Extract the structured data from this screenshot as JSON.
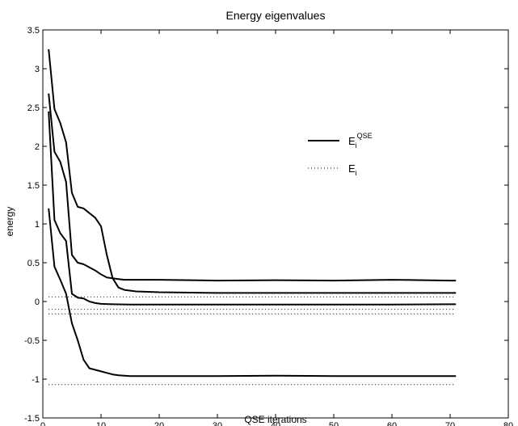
{
  "chart_data": {
    "type": "line",
    "title": "Energy eigenvalues",
    "xlabel": "QSE iterations",
    "ylabel": "energy",
    "xlim": [
      0,
      80
    ],
    "ylim": [
      -1.5,
      3.5
    ],
    "xticks": [
      0,
      10,
      20,
      30,
      40,
      50,
      60,
      70,
      80
    ],
    "yticks": [
      -1.5,
      -1,
      -0.5,
      0,
      0.5,
      1,
      1.5,
      2,
      2.5,
      3,
      3.5
    ],
    "xtick_labels": [
      "0",
      "10",
      "20",
      "30",
      "40",
      "50",
      "60",
      "70",
      "80"
    ],
    "ytick_labels": [
      "-1.5",
      "-1",
      "-0.5",
      "0",
      "0.5",
      "1",
      "1.5",
      "2",
      "2.5",
      "3",
      "3.5"
    ],
    "grid": false,
    "legend": {
      "placement": "right-middle",
      "entries": [
        {
          "base": "E",
          "sub": "i",
          "sup": "QSE",
          "style": "solid"
        },
        {
          "base": "E",
          "sub": "i",
          "sup": "",
          "style": "dotted"
        }
      ]
    },
    "series": [
      {
        "style": "solid",
        "x": [
          1,
          2,
          3,
          4,
          5,
          6,
          7,
          8,
          9,
          10,
          11,
          12,
          13,
          14,
          16,
          20,
          30,
          40,
          50,
          60,
          70,
          71
        ],
        "y": [
          3.25,
          2.48,
          2.3,
          2.05,
          1.4,
          1.22,
          1.2,
          1.14,
          1.08,
          0.97,
          0.6,
          0.3,
          0.29,
          0.28,
          0.28,
          0.28,
          0.27,
          0.275,
          0.27,
          0.28,
          0.27,
          0.27
        ]
      },
      {
        "style": "solid",
        "x": [
          1,
          2,
          3,
          4,
          5,
          6,
          7,
          8,
          9,
          10,
          11,
          12,
          13,
          14,
          16,
          20,
          30,
          40,
          50,
          60,
          70,
          71
        ],
        "y": [
          2.68,
          1.93,
          1.8,
          1.54,
          0.6,
          0.5,
          0.48,
          0.44,
          0.4,
          0.35,
          0.31,
          0.3,
          0.18,
          0.15,
          0.13,
          0.12,
          0.11,
          0.11,
          0.11,
          0.11,
          0.11,
          0.11
        ]
      },
      {
        "style": "solid",
        "x": [
          1,
          2,
          3,
          4,
          5,
          6,
          7,
          8,
          9,
          10,
          12,
          15,
          20,
          30,
          40,
          50,
          60,
          70,
          71
        ],
        "y": [
          2.45,
          1.05,
          0.88,
          0.78,
          0.1,
          0.05,
          0.04,
          0.0,
          -0.02,
          -0.03,
          -0.035,
          -0.04,
          -0.04,
          -0.04,
          -0.04,
          -0.04,
          -0.04,
          -0.035,
          -0.035
        ]
      },
      {
        "style": "solid",
        "x": [
          1,
          2,
          3,
          4,
          5,
          6,
          7,
          8,
          9,
          10,
          11,
          12,
          13,
          15,
          20,
          30,
          40,
          50,
          60,
          70,
          71
        ],
        "y": [
          1.2,
          0.45,
          0.28,
          0.1,
          -0.28,
          -0.5,
          -0.75,
          -0.86,
          -0.88,
          -0.9,
          -0.92,
          -0.94,
          -0.95,
          -0.96,
          -0.96,
          -0.96,
          -0.955,
          -0.96,
          -0.96,
          -0.96,
          -0.96
        ]
      },
      {
        "style": "dotted",
        "x": [
          1,
          71
        ],
        "y": [
          0.06,
          0.06
        ]
      },
      {
        "style": "dotted",
        "x": [
          1,
          71
        ],
        "y": [
          -0.1,
          -0.1
        ]
      },
      {
        "style": "dotted",
        "x": [
          1,
          71
        ],
        "y": [
          -0.16,
          -0.16
        ]
      },
      {
        "style": "dotted",
        "x": [
          1,
          71
        ],
        "y": [
          -1.07,
          -1.07
        ]
      }
    ]
  }
}
